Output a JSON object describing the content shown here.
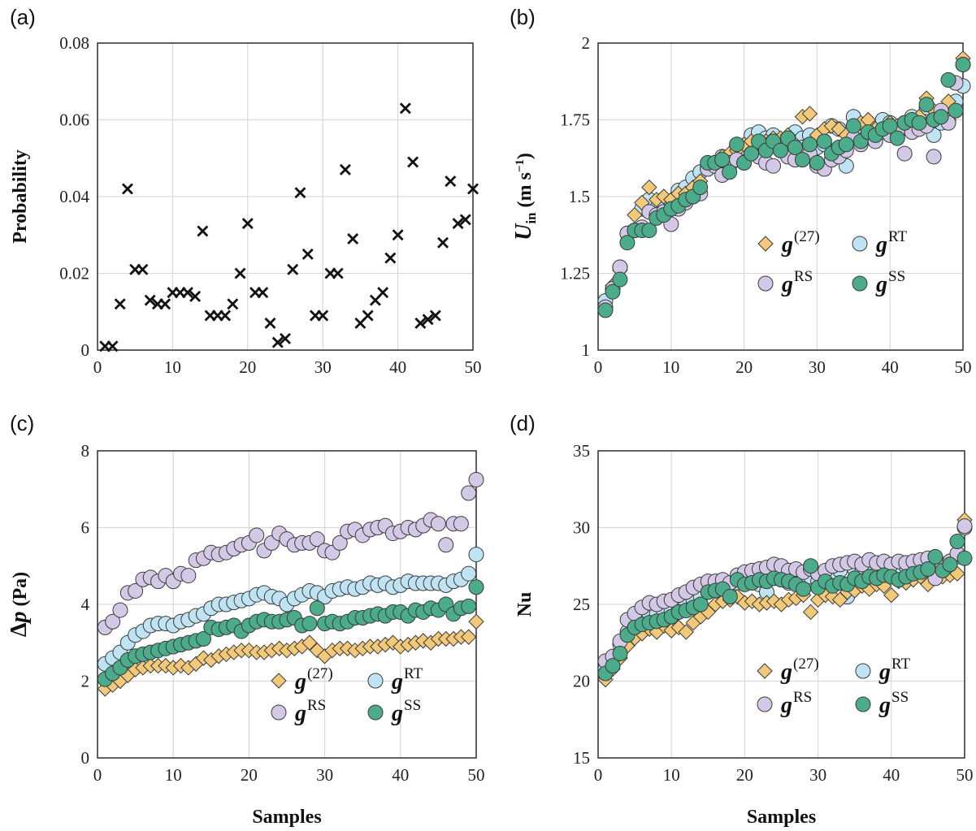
{
  "chart_data": [
    {
      "id": "a",
      "panel_label": "(a)",
      "type": "scatter",
      "xlabel": "",
      "ylabel": "Probability",
      "xlim": [
        0,
        50
      ],
      "ylim": [
        0,
        0.08
      ],
      "xticks": [
        "0",
        "10",
        "20",
        "30",
        "40",
        "50"
      ],
      "yticks": [
        "0",
        "0.02",
        "0.04",
        "0.06",
        "0.08"
      ],
      "series": [
        {
          "name": "Probability",
          "marker": "x",
          "color": "#111111",
          "x": [
            1,
            2,
            3,
            4,
            5,
            6,
            7,
            8,
            9,
            10,
            11,
            12,
            13,
            14,
            15,
            16,
            17,
            18,
            19,
            20,
            21,
            22,
            23,
            24,
            25,
            26,
            27,
            28,
            29,
            30,
            31,
            32,
            33,
            34,
            35,
            36,
            37,
            38,
            39,
            40,
            41,
            42,
            43,
            44,
            45,
            46,
            47,
            48,
            49,
            50
          ],
          "y": [
            0.001,
            0.001,
            0.012,
            0.042,
            0.021,
            0.021,
            0.013,
            0.012,
            0.012,
            0.015,
            0.015,
            0.015,
            0.014,
            0.031,
            0.009,
            0.009,
            0.009,
            0.012,
            0.02,
            0.033,
            0.015,
            0.015,
            0.007,
            0.002,
            0.003,
            0.021,
            0.041,
            0.025,
            0.009,
            0.009,
            0.02,
            0.02,
            0.047,
            0.029,
            0.007,
            0.009,
            0.013,
            0.015,
            0.024,
            0.03,
            0.063,
            0.049,
            0.007,
            0.008,
            0.009,
            0.028,
            0.044,
            0.033,
            0.034,
            0.042
          ]
        }
      ]
    },
    {
      "id": "b",
      "panel_label": "(b)",
      "type": "scatter",
      "xlabel": "",
      "ylabel": "U",
      "ylabel_sub": "in",
      "ylabel_unit": "(m s",
      "ylabel_unit_sup": "−1",
      "ylabel_close": ")",
      "xlim": [
        0,
        50
      ],
      "ylim": [
        1,
        2
      ],
      "xticks": [
        "0",
        "10",
        "20",
        "30",
        "40",
        "50"
      ],
      "yticks": [
        "1",
        "1.25",
        "1.5",
        "1.75",
        "2"
      ],
      "legend": {
        "placement": "center-right",
        "columns": 2
      },
      "series": [
        {
          "name": "g",
          "sup": "(27)",
          "marker": "diamond",
          "color": "#f2c97a",
          "y": [
            1.13,
            1.21,
            1.26,
            1.38,
            1.44,
            1.48,
            1.53,
            1.49,
            1.5,
            1.49,
            1.51,
            1.51,
            1.53,
            1.55,
            1.6,
            1.61,
            1.63,
            1.64,
            1.65,
            1.67,
            1.68,
            1.66,
            1.68,
            1.69,
            1.69,
            1.7,
            1.67,
            1.76,
            1.77,
            1.7,
            1.72,
            1.73,
            1.72,
            1.7,
            1.73,
            1.74,
            1.75,
            1.72,
            1.71,
            1.74,
            1.73,
            1.73,
            1.74,
            1.76,
            1.82,
            1.78,
            1.76,
            1.81,
            1.87,
            1.95
          ]
        },
        {
          "name": "g",
          "sup": "RT",
          "marker": "circle",
          "color": "#bfe3f2",
          "y": [
            1.16,
            1.2,
            1.27,
            1.38,
            1.39,
            1.46,
            1.49,
            1.46,
            1.48,
            1.48,
            1.52,
            1.53,
            1.56,
            1.58,
            1.59,
            1.61,
            1.63,
            1.6,
            1.66,
            1.66,
            1.7,
            1.71,
            1.69,
            1.7,
            1.67,
            1.68,
            1.71,
            1.69,
            1.7,
            1.66,
            1.67,
            1.73,
            1.72,
            1.6,
            1.76,
            1.73,
            1.74,
            1.71,
            1.75,
            1.74,
            1.7,
            1.74,
            1.76,
            1.72,
            1.79,
            1.7,
            1.74,
            1.75,
            1.81,
            1.86
          ]
        },
        {
          "name": "g",
          "sup": "RS",
          "marker": "circle",
          "color": "#d3c9e6",
          "y": [
            1.14,
            1.2,
            1.27,
            1.38,
            1.39,
            1.4,
            1.45,
            1.44,
            1.45,
            1.41,
            1.46,
            1.48,
            1.5,
            1.51,
            1.59,
            1.6,
            1.57,
            1.61,
            1.62,
            1.61,
            1.64,
            1.63,
            1.61,
            1.6,
            1.65,
            1.63,
            1.62,
            1.66,
            1.64,
            1.6,
            1.59,
            1.62,
            1.63,
            1.65,
            1.69,
            1.67,
            1.7,
            1.68,
            1.71,
            1.7,
            1.71,
            1.64,
            1.71,
            1.72,
            1.73,
            1.63,
            1.78,
            1.74,
            1.87,
            1.93
          ]
        },
        {
          "name": "g",
          "sup": "SS",
          "marker": "circle",
          "color": "#4cab8a",
          "y": [
            1.13,
            1.19,
            1.23,
            1.35,
            1.39,
            1.39,
            1.39,
            1.43,
            1.44,
            1.46,
            1.47,
            1.49,
            1.5,
            1.53,
            1.61,
            1.61,
            1.62,
            1.58,
            1.67,
            1.61,
            1.64,
            1.68,
            1.65,
            1.68,
            1.65,
            1.69,
            1.66,
            1.62,
            1.67,
            1.61,
            1.68,
            1.64,
            1.66,
            1.67,
            1.73,
            1.68,
            1.71,
            1.7,
            1.72,
            1.73,
            1.69,
            1.74,
            1.75,
            1.74,
            1.8,
            1.75,
            1.76,
            1.88,
            1.78,
            1.93
          ]
        }
      ]
    },
    {
      "id": "c",
      "panel_label": "(c)",
      "type": "scatter",
      "xlabel": "Samples",
      "ylabel": "Δp (Pa)",
      "ylabel_sym": "Δ",
      "ylabel_var": "p",
      "ylabel_unit": "(Pa)",
      "xlim": [
        0,
        50
      ],
      "ylim": [
        0,
        8
      ],
      "xticks": [
        "0",
        "10",
        "20",
        "30",
        "40",
        "50"
      ],
      "yticks": [
        "0",
        "2",
        "4",
        "6",
        "8"
      ],
      "legend": {
        "placement": "bottom-right",
        "columns": 2
      },
      "series": [
        {
          "name": "g",
          "sup": "(27)",
          "marker": "diamond",
          "color": "#f2c97a",
          "y": [
            1.8,
            1.9,
            2.0,
            2.15,
            2.3,
            2.35,
            2.4,
            2.4,
            2.4,
            2.35,
            2.4,
            2.35,
            2.45,
            2.6,
            2.55,
            2.65,
            2.7,
            2.75,
            2.8,
            2.8,
            2.75,
            2.75,
            2.8,
            2.85,
            2.8,
            2.85,
            2.9,
            3.0,
            2.8,
            2.65,
            2.8,
            2.85,
            2.85,
            2.8,
            2.85,
            2.9,
            2.9,
            2.95,
            3.0,
            2.9,
            2.95,
            3.0,
            3.05,
            3.0,
            3.1,
            3.1,
            3.1,
            3.15,
            3.15,
            3.55
          ]
        },
        {
          "name": "g",
          "sup": "RT",
          "marker": "circle",
          "color": "#bfe3f2",
          "y": [
            2.45,
            2.6,
            2.75,
            3.0,
            3.2,
            3.3,
            3.45,
            3.5,
            3.5,
            3.45,
            3.55,
            3.6,
            3.7,
            3.75,
            3.9,
            4.0,
            4.0,
            4.05,
            4.1,
            4.15,
            4.25,
            4.3,
            4.2,
            4.15,
            4.0,
            4.15,
            4.25,
            4.35,
            4.3,
            4.2,
            4.35,
            4.4,
            4.45,
            4.4,
            4.45,
            4.55,
            4.5,
            4.55,
            4.45,
            4.5,
            4.6,
            4.55,
            4.55,
            4.55,
            4.55,
            4.5,
            4.6,
            4.65,
            4.8,
            5.3
          ]
        },
        {
          "name": "g",
          "sup": "RS",
          "marker": "circle",
          "color": "#d3c9e6",
          "y": [
            3.4,
            3.55,
            3.85,
            4.3,
            4.35,
            4.65,
            4.7,
            4.6,
            4.75,
            4.6,
            4.8,
            4.75,
            5.15,
            5.2,
            5.35,
            5.3,
            5.35,
            5.45,
            5.55,
            5.6,
            5.8,
            5.4,
            5.6,
            5.85,
            5.7,
            5.55,
            5.6,
            5.6,
            5.7,
            5.4,
            5.35,
            5.6,
            5.9,
            5.95,
            5.8,
            5.95,
            6.0,
            6.05,
            5.85,
            5.9,
            6.0,
            5.95,
            6.05,
            6.2,
            6.1,
            5.55,
            6.1,
            6.1,
            6.9,
            7.25
          ]
        },
        {
          "name": "g",
          "sup": "SS",
          "marker": "circle",
          "color": "#4cab8a",
          "y": [
            2.05,
            2.2,
            2.35,
            2.55,
            2.65,
            2.7,
            2.75,
            2.8,
            2.85,
            2.9,
            2.95,
            3.0,
            3.05,
            3.1,
            3.4,
            3.35,
            3.4,
            3.45,
            3.3,
            3.45,
            3.55,
            3.6,
            3.55,
            3.55,
            3.6,
            3.65,
            3.45,
            3.5,
            3.9,
            3.5,
            3.55,
            3.5,
            3.55,
            3.65,
            3.65,
            3.7,
            3.75,
            3.7,
            3.8,
            3.8,
            3.7,
            3.85,
            3.8,
            3.9,
            3.85,
            4.0,
            3.75,
            3.9,
            3.95,
            4.45
          ]
        }
      ]
    },
    {
      "id": "d",
      "panel_label": "(d)",
      "type": "scatter",
      "xlabel": "Samples",
      "ylabel": "Nu",
      "xlim": [
        0,
        50
      ],
      "ylim": [
        15,
        35
      ],
      "xticks": [
        "0",
        "10",
        "20",
        "30",
        "40",
        "50"
      ],
      "yticks": [
        "15",
        "20",
        "25",
        "30",
        "35"
      ],
      "legend": {
        "placement": "bottom-right",
        "columns": 2
      },
      "series": [
        {
          "name": "g",
          "sup": "(27)",
          "marker": "diamond",
          "color": "#f2c97a",
          "y": [
            20.1,
            20.8,
            21.5,
            22.3,
            22.8,
            23.1,
            23.4,
            23.2,
            23.6,
            23.3,
            23.5,
            23.2,
            23.8,
            24.2,
            24.5,
            25.0,
            25.2,
            25.3,
            25.5,
            25.1,
            25.2,
            25.0,
            25.1,
            25.2,
            25.0,
            25.3,
            25.4,
            25.6,
            24.5,
            25.3,
            25.6,
            25.5,
            25.3,
            25.8,
            25.9,
            26.2,
            26.0,
            26.3,
            26.2,
            25.6,
            26.5,
            26.4,
            26.6,
            26.8,
            26.3,
            26.7,
            26.8,
            26.9,
            27.0,
            30.5
          ]
        },
        {
          "name": "g",
          "sup": "RT",
          "marker": "circle",
          "color": "#bfe3f2",
          "y": [
            20.8,
            21.2,
            22.4,
            23.2,
            23.5,
            23.8,
            24.2,
            24.4,
            24.5,
            24.6,
            24.8,
            25.0,
            25.3,
            25.5,
            25.9,
            26.0,
            26.1,
            25.8,
            26.4,
            26.6,
            26.5,
            26.3,
            25.8,
            26.9,
            26.7,
            26.4,
            26.5,
            26.8,
            26.8,
            26.5,
            26.6,
            27.0,
            27.2,
            25.5,
            27.3,
            27.1,
            27.2,
            27.0,
            27.3,
            27.4,
            27.2,
            27.5,
            27.6,
            27.4,
            27.8,
            27.6,
            27.6,
            27.8,
            28.1,
            30.0
          ]
        },
        {
          "name": "g",
          "sup": "RS",
          "marker": "circle",
          "color": "#d3c9e6",
          "y": [
            21.3,
            21.6,
            22.6,
            24.0,
            24.4,
            24.8,
            25.1,
            25.0,
            25.2,
            25.3,
            25.6,
            25.8,
            26.1,
            26.3,
            26.5,
            26.5,
            26.6,
            26.4,
            26.9,
            27.1,
            27.2,
            27.3,
            27.4,
            27.6,
            27.5,
            27.2,
            27.3,
            27.1,
            27.3,
            27.0,
            27.2,
            27.5,
            27.6,
            27.7,
            27.8,
            27.6,
            27.9,
            27.7,
            27.8,
            27.6,
            27.8,
            27.7,
            27.8,
            27.9,
            28.0,
            26.7,
            27.5,
            27.8,
            28.3,
            30.1
          ]
        },
        {
          "name": "g",
          "sup": "SS",
          "marker": "circle",
          "color": "#4cab8a",
          "y": [
            20.5,
            21.0,
            21.8,
            23.0,
            23.5,
            23.7,
            23.8,
            23.9,
            24.0,
            24.2,
            24.5,
            24.6,
            24.8,
            25.0,
            25.8,
            25.9,
            26.0,
            25.5,
            26.6,
            26.3,
            26.4,
            26.6,
            26.5,
            26.7,
            26.6,
            26.5,
            26.3,
            26.0,
            27.5,
            26.1,
            26.5,
            26.2,
            26.4,
            26.3,
            26.7,
            26.5,
            26.8,
            26.7,
            26.9,
            26.8,
            26.6,
            26.8,
            27.0,
            27.1,
            27.3,
            28.1,
            27.2,
            27.6,
            29.1,
            28.0
          ]
        }
      ]
    }
  ]
}
